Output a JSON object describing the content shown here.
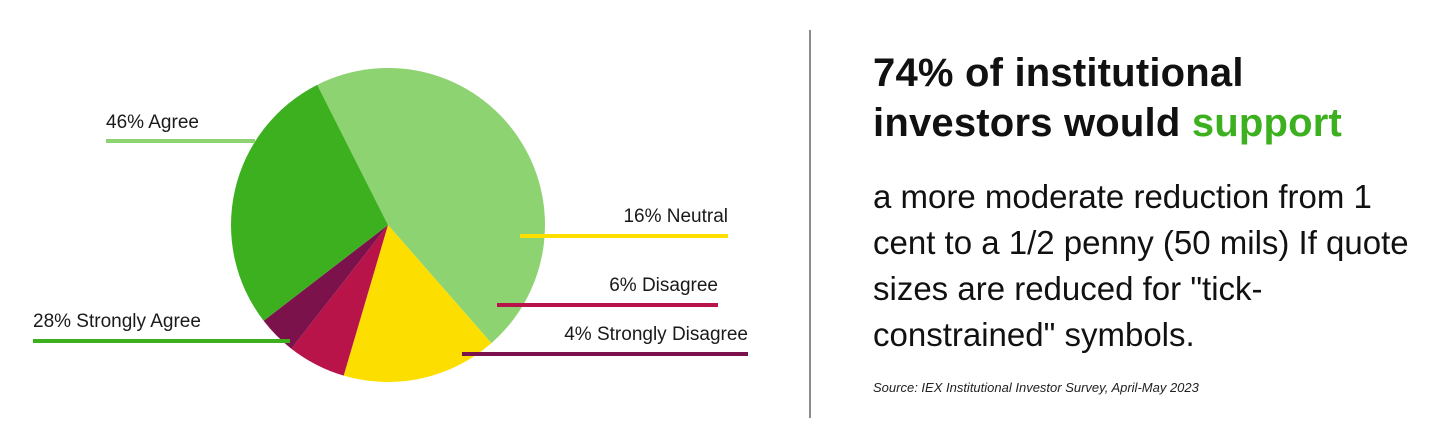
{
  "chart_data": {
    "type": "pie",
    "title": "",
    "slices": [
      {
        "label": "46% Agree",
        "value": 46,
        "color": "#8ed372"
      },
      {
        "label": "16% Neutral",
        "value": 16,
        "color": "#fcdf00"
      },
      {
        "label": "6% Disagree",
        "value": 6,
        "color": "#b8144a"
      },
      {
        "label": "4% Strongly Disagree",
        "value": 4,
        "color": "#7c124c"
      },
      {
        "label": "28% Strongly Agree",
        "value": 28,
        "color": "#3cb01f"
      }
    ],
    "legend": "leader-lines"
  },
  "headline": {
    "line1": "74% of institutional",
    "line2_prefix": "investors would ",
    "accent": "support",
    "accent_color": "#3cb01f"
  },
  "body": "a more moderate reduction from 1 cent to a 1/2 penny (50 mils) If quote sizes are reduced for \"tick-constrained\" symbols.",
  "source": "Source: IEX Institutional Investor Survey, April-May 2023"
}
